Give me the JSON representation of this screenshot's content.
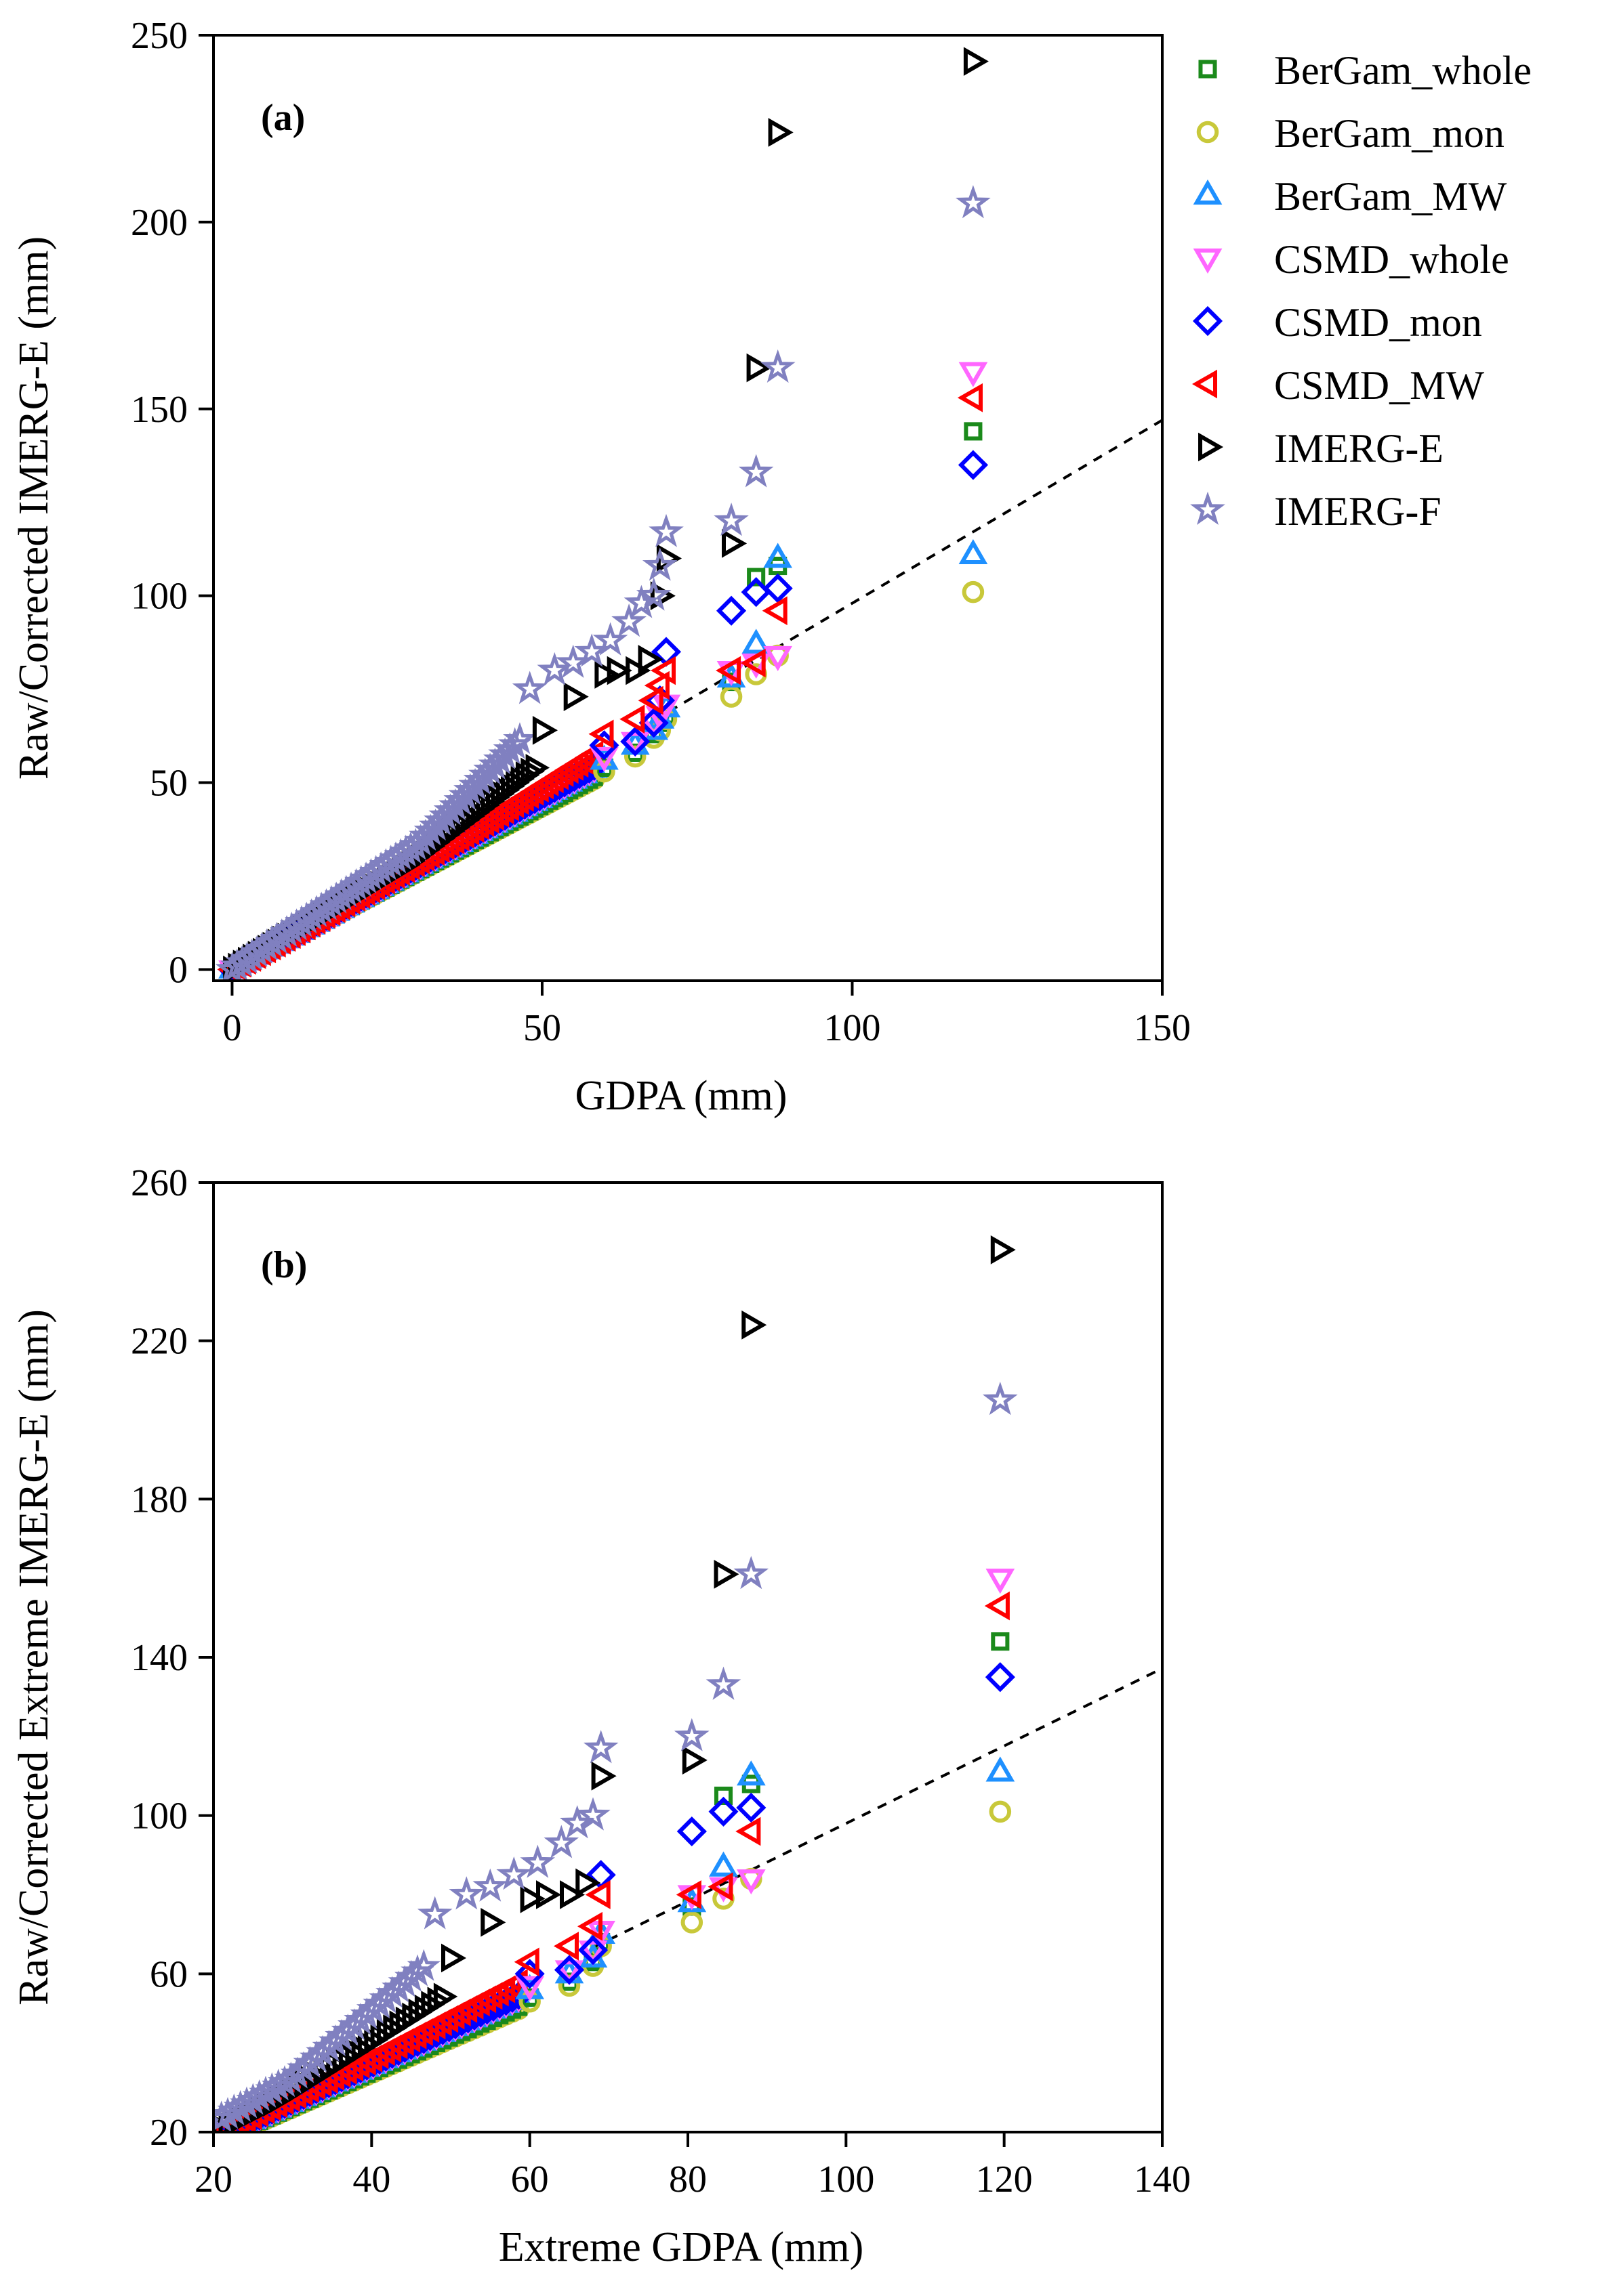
{
  "legend": [
    {
      "key": "bergam_whole",
      "label": "BerGam_whole",
      "marker": "square",
      "color": "#1b8a1b"
    },
    {
      "key": "bergam_mon",
      "label": "BerGam_mon",
      "marker": "circle",
      "color": "#c8c83a"
    },
    {
      "key": "bergam_mw",
      "label": "BerGam_MW",
      "marker": "triangle-up",
      "color": "#1e90ff"
    },
    {
      "key": "csmd_whole",
      "label": "CSMD_whole",
      "marker": "triangle-down",
      "color": "#ff66ff"
    },
    {
      "key": "csmd_mon",
      "label": "CSMD_mon",
      "marker": "diamond",
      "color": "#0000ff"
    },
    {
      "key": "csmd_mw",
      "label": "CSMD_MW",
      "marker": "triangle-left",
      "color": "#ff0000"
    },
    {
      "key": "imerg_e",
      "label": "IMERG-E",
      "marker": "triangle-right",
      "color": "#000000"
    },
    {
      "key": "imerg_f",
      "label": "IMERG-F",
      "marker": "star",
      "color": "#8080c0"
    }
  ],
  "chart_data": [
    {
      "type": "scatter",
      "panel_label": "(a)",
      "xlabel": "GDPA (mm)",
      "ylabel": "Raw/Corrected IMERG-E (mm)",
      "xlim": [
        -3,
        150
      ],
      "ylim": [
        -3,
        250
      ],
      "xticks": [
        0,
        50,
        100,
        150
      ],
      "yticks": [
        0,
        50,
        100,
        150,
        200,
        250
      ],
      "reference_line": {
        "style": "dashed",
        "slope": 0.98,
        "intercept": 0,
        "x_range": [
          68,
          150
        ]
      },
      "series": [
        {
          "key": "bergam_whole",
          "x": [
            60,
            65,
            68,
            69,
            70,
            80.5,
            84.5,
            88,
            119.5
          ],
          "y": [
            54,
            58,
            63,
            66,
            68,
            77,
            105,
            108,
            144
          ]
        },
        {
          "key": "bergam_mon",
          "x": [
            60,
            65,
            68,
            69,
            70,
            80.5,
            84.5,
            88,
            119.5
          ],
          "y": [
            53,
            57,
            62,
            64,
            67,
            73,
            79,
            84,
            101
          ]
        },
        {
          "key": "bergam_mw",
          "x": [
            60,
            65,
            68,
            69,
            70,
            80.5,
            84.5,
            88,
            119.5
          ],
          "y": [
            56,
            60,
            64,
            67,
            70,
            78,
            87,
            110,
            111
          ]
        },
        {
          "key": "csmd_whole",
          "x": [
            60,
            65,
            68,
            69,
            70,
            80.5,
            84.5,
            88,
            119.5
          ],
          "y": [
            57,
            61,
            66,
            68,
            71,
            80,
            82,
            84,
            160
          ]
        },
        {
          "key": "csmd_mon",
          "x": [
            60,
            65,
            68,
            69,
            70,
            80.5,
            84.5,
            88,
            119.5
          ],
          "y": [
            60,
            61,
            66,
            72,
            85,
            96,
            101,
            102,
            135
          ]
        },
        {
          "key": "csmd_mw",
          "x": [
            60,
            65,
            68,
            69,
            70,
            80.5,
            84.5,
            88,
            119.5
          ],
          "y": [
            63,
            67,
            72,
            76,
            80,
            80,
            82,
            96,
            153
          ]
        },
        {
          "key": "imerg_e",
          "x": [
            50,
            55,
            60,
            62,
            65,
            67,
            69,
            70,
            80.5,
            84.5,
            88,
            119.5
          ],
          "y": [
            64,
            73,
            79,
            80,
            80,
            83,
            100,
            110,
            114,
            161,
            224,
            243
          ]
        },
        {
          "key": "imerg_f",
          "x": [
            48,
            52,
            55,
            58,
            61,
            64,
            66,
            68,
            69,
            70,
            80.5,
            84.5,
            88,
            119.5
          ],
          "y": [
            75,
            80,
            82,
            85,
            88,
            93,
            98,
            100,
            108,
            117,
            120,
            133,
            161,
            205
          ]
        }
      ]
    },
    {
      "type": "scatter",
      "panel_label": "(b)",
      "xlabel": "Extreme GDPA (mm)",
      "ylabel": "Raw/Corrected Extreme IMERG-E (mm)",
      "xlim": [
        20,
        140
      ],
      "ylim": [
        20,
        260
      ],
      "xticks": [
        20,
        40,
        60,
        80,
        100,
        120,
        140
      ],
      "yticks": [
        20,
        60,
        100,
        140,
        180,
        220,
        260
      ],
      "reference_line": {
        "style": "dashed",
        "slope": 0.98,
        "intercept": 0,
        "x_range": [
          68,
          140
        ]
      },
      "series": [
        {
          "key": "bergam_whole",
          "x": [
            60,
            65,
            68,
            69,
            80.5,
            84.5,
            88,
            119.5
          ],
          "y": [
            54,
            58,
            63,
            68,
            77,
            105,
            108,
            144
          ]
        },
        {
          "key": "bergam_mon",
          "x": [
            60,
            65,
            68,
            69,
            80.5,
            84.5,
            88,
            119.5
          ],
          "y": [
            53,
            57,
            62,
            67,
            73,
            79,
            84,
            101
          ]
        },
        {
          "key": "bergam_mw",
          "x": [
            60,
            65,
            68,
            69,
            80.5,
            84.5,
            88,
            119.5
          ],
          "y": [
            56,
            60,
            64,
            70,
            78,
            87,
            110,
            111
          ]
        },
        {
          "key": "csmd_whole",
          "x": [
            60,
            65,
            68,
            69,
            80.5,
            84.5,
            88,
            119.5
          ],
          "y": [
            57,
            61,
            66,
            71,
            80,
            82,
            84,
            160
          ]
        },
        {
          "key": "csmd_mon",
          "x": [
            60,
            65,
            68,
            69,
            80.5,
            84.5,
            88,
            119.5
          ],
          "y": [
            60,
            61,
            66,
            85,
            96,
            101,
            102,
            135
          ]
        },
        {
          "key": "csmd_mw",
          "x": [
            60,
            65,
            68,
            69,
            80.5,
            84.5,
            88,
            119.5
          ],
          "y": [
            63,
            67,
            72,
            80,
            80,
            82,
            96,
            153
          ]
        },
        {
          "key": "imerg_e",
          "x": [
            50,
            55,
            60,
            62,
            65,
            67,
            69,
            80.5,
            84.5,
            88,
            119.5
          ],
          "y": [
            64,
            73,
            79,
            80,
            80,
            83,
            110,
            114,
            161,
            224,
            243
          ]
        },
        {
          "key": "imerg_f",
          "x": [
            48,
            52,
            55,
            58,
            61,
            64,
            66,
            68,
            69,
            80.5,
            84.5,
            88,
            119.5
          ],
          "y": [
            75,
            80,
            82,
            85,
            88,
            93,
            98,
            100,
            117,
            120,
            133,
            161,
            205
          ]
        }
      ]
    }
  ]
}
